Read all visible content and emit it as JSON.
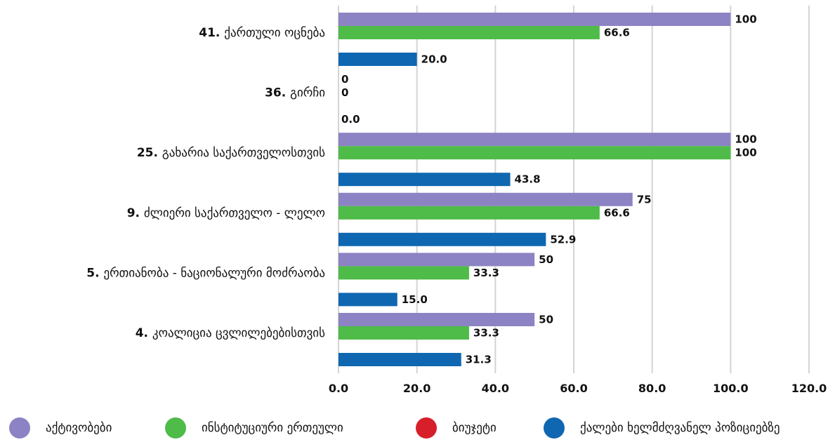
{
  "chart_data": {
    "type": "bar",
    "orientation": "horizontal",
    "title": "",
    "xlabel": "",
    "ylabel": "",
    "xlim": [
      0,
      120
    ],
    "xticks": [
      "0.0",
      "20.0",
      "40.0",
      "60.0",
      "80.0",
      "100.0",
      "120.0"
    ],
    "grid": true,
    "legend_position": "bottom",
    "categories": [
      {
        "num": "41.",
        "name": "ქართული ოცნება"
      },
      {
        "num": "36.",
        "name": "გირჩი"
      },
      {
        "num": "25.",
        "name": "გახარია საქართველოსთვის"
      },
      {
        "num": "9.",
        "name": "ძლიერი საქართველო - ლელო"
      },
      {
        "num": "5.",
        "name": "ერთიანობა - ნაციონალური მოძრაობა"
      },
      {
        "num": "4.",
        "name": "კოალიცია ცვლილებებისთვის"
      }
    ],
    "series": [
      {
        "name": "აქტივობები",
        "color": "#8b83c3",
        "values": [
          100,
          0,
          100,
          75,
          50,
          50
        ],
        "labels": [
          "100",
          "0",
          "100",
          "75",
          "50",
          "50"
        ]
      },
      {
        "name": "ინსტიტუციური ერთეული",
        "color": "#4fbb48",
        "values": [
          66.6,
          0,
          100,
          66.6,
          33.3,
          33.3
        ],
        "labels": [
          "66.6",
          "0",
          "100",
          "66.6",
          "33.3",
          "33.3"
        ]
      },
      {
        "name": "ბიუჯეტი",
        "color": "#d71f2b",
        "values": [
          null,
          null,
          null,
          null,
          null,
          null
        ],
        "labels": [
          "",
          "",
          "",
          "",
          "",
          ""
        ]
      },
      {
        "name": "ქალები ხელმძღვანელ პოზიციებზე",
        "color": "#0f67b1",
        "values": [
          20.0,
          0.0,
          43.8,
          52.9,
          15.0,
          31.3
        ],
        "labels": [
          "20.0",
          "0.0",
          "43.8",
          "52.9",
          "15.0",
          "31.3"
        ]
      }
    ]
  }
}
